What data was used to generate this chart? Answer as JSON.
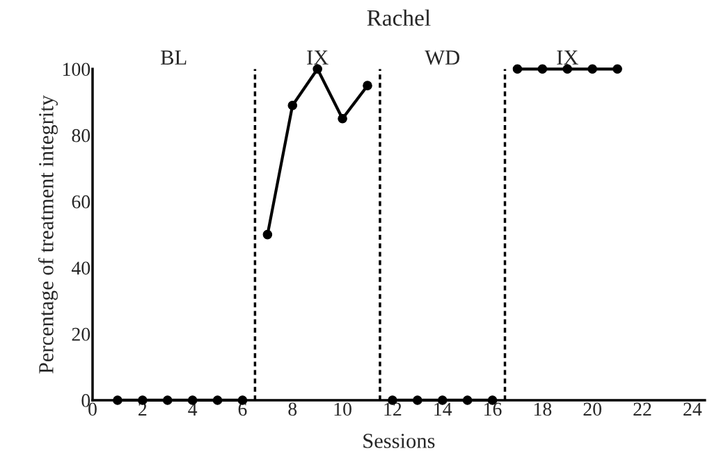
{
  "chart_data": {
    "type": "line",
    "title": "Rachel",
    "xlabel": "Sessions",
    "ylabel": "Percentage of treatment integrity",
    "xlim": [
      0,
      24.5
    ],
    "xticks": [
      0,
      2,
      4,
      6,
      8,
      10,
      12,
      14,
      16,
      18,
      20,
      22,
      24
    ],
    "ylim": [
      0,
      100
    ],
    "yticks": [
      0,
      20,
      40,
      60,
      80,
      100
    ],
    "grid": false,
    "marker": "circle",
    "line_style": "solid",
    "series": [
      {
        "color": "#000000",
        "x": [
          1,
          2,
          3,
          4,
          5,
          6
        ],
        "values": [
          0,
          0,
          0,
          0,
          0,
          0
        ]
      },
      {
        "color": "#000000",
        "x": [
          7,
          8,
          9,
          10,
          11
        ],
        "values": [
          50,
          89,
          100,
          85,
          95
        ]
      },
      {
        "color": "#000000",
        "x": [
          12,
          13,
          14,
          15,
          16
        ],
        "values": [
          0,
          0,
          0,
          0,
          0
        ]
      },
      {
        "color": "#000000",
        "x": [
          17,
          18,
          19,
          20,
          21
        ],
        "values": [
          100,
          100,
          100,
          100,
          100
        ]
      }
    ],
    "ref_lines": [
      {
        "axis": "x",
        "value": 6.5,
        "line_style": "dashed",
        "color": "#000000"
      },
      {
        "axis": "x",
        "value": 11.5,
        "line_style": "dashed",
        "color": "#000000"
      },
      {
        "axis": "x",
        "value": 16.5,
        "line_style": "dashed",
        "color": "#000000"
      }
    ],
    "annotations": [
      "BL",
      "IX",
      "WD",
      "IX"
    ]
  }
}
